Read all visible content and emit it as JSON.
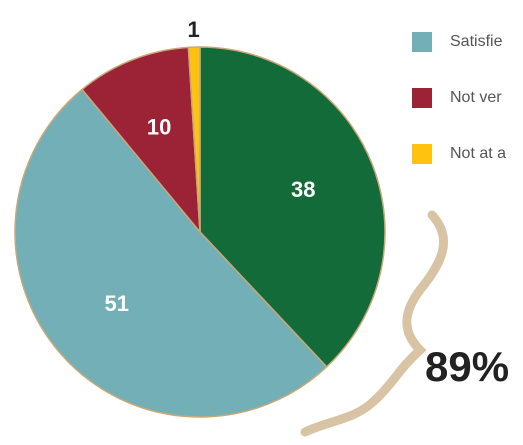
{
  "chart_data": {
    "type": "pie",
    "categories": [
      null,
      "Satisfie",
      "Not ver",
      "Not at a"
    ],
    "values": [
      38,
      51,
      10,
      1
    ],
    "colors": [
      "#146b3a",
      "#72afb6",
      "#9b2335",
      "#ffc20e"
    ],
    "annotation": "89%"
  }
}
